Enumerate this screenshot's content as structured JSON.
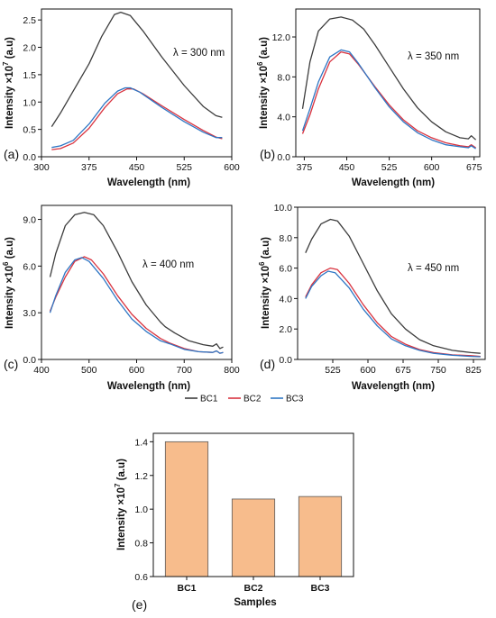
{
  "chart_data": [
    {
      "type": "line",
      "panel": "(a)",
      "annotation": "λ = 300 nm",
      "xlabel": "Wavelength (nm)",
      "ylabel": "Intensity ×10",
      "ylabel_exponent": "7",
      "ylabel_unit": " (a.u)",
      "xlim": [
        300,
        600
      ],
      "ylim": [
        0,
        2.7
      ],
      "xticks": [
        300,
        375,
        450,
        525,
        600
      ],
      "yticks": [
        0.0,
        0.5,
        1.0,
        1.5,
        2.0,
        2.5
      ],
      "ytick_decimals": 1,
      "series": [
        {
          "name": "BC1",
          "color": "#3c3c3c",
          "points": [
            [
              316,
              0.55
            ],
            [
              330,
              0.8
            ],
            [
              350,
              1.2
            ],
            [
              375,
              1.7
            ],
            [
              395,
              2.2
            ],
            [
              415,
              2.6
            ],
            [
              425,
              2.64
            ],
            [
              440,
              2.58
            ],
            [
              460,
              2.3
            ],
            [
              490,
              1.82
            ],
            [
              525,
              1.3
            ],
            [
              555,
              0.92
            ],
            [
              575,
              0.75
            ],
            [
              585,
              0.72
            ]
          ]
        },
        {
          "name": "BC2",
          "color": "#d9333f",
          "points": [
            [
              316,
              0.13
            ],
            [
              330,
              0.15
            ],
            [
              350,
              0.25
            ],
            [
              375,
              0.52
            ],
            [
              400,
              0.9
            ],
            [
              420,
              1.15
            ],
            [
              435,
              1.24
            ],
            [
              445,
              1.24
            ],
            [
              460,
              1.15
            ],
            [
              490,
              0.93
            ],
            [
              525,
              0.68
            ],
            [
              555,
              0.48
            ],
            [
              575,
              0.36
            ],
            [
              585,
              0.33
            ]
          ]
        },
        {
          "name": "BC3",
          "color": "#2e76c4",
          "points": [
            [
              316,
              0.17
            ],
            [
              330,
              0.2
            ],
            [
              350,
              0.3
            ],
            [
              375,
              0.6
            ],
            [
              400,
              0.98
            ],
            [
              420,
              1.2
            ],
            [
              432,
              1.26
            ],
            [
              440,
              1.26
            ],
            [
              455,
              1.18
            ],
            [
              490,
              0.9
            ],
            [
              525,
              0.64
            ],
            [
              555,
              0.45
            ],
            [
              575,
              0.35
            ],
            [
              585,
              0.35
            ]
          ]
        }
      ]
    },
    {
      "type": "line",
      "panel": "(b)",
      "annotation": "λ = 350 nm",
      "xlabel": "Wavelength (nm)",
      "ylabel": "Intensity ×10",
      "ylabel_exponent": "6",
      "ylabel_unit": " (a.u)",
      "xlim": [
        360,
        685
      ],
      "ylim": [
        0,
        14.8
      ],
      "xticks": [
        375,
        450,
        525,
        600,
        675
      ],
      "yticks": [
        0.0,
        4.0,
        8.0,
        12.0
      ],
      "ytick_decimals": 1,
      "series": [
        {
          "name": "BC1",
          "color": "#3c3c3c",
          "points": [
            [
              372,
              4.8
            ],
            [
              385,
              9.5
            ],
            [
              400,
              12.6
            ],
            [
              420,
              13.8
            ],
            [
              440,
              14.0
            ],
            [
              460,
              13.7
            ],
            [
              480,
              12.8
            ],
            [
              500,
              11.2
            ],
            [
              525,
              9.0
            ],
            [
              550,
              6.8
            ],
            [
              575,
              4.9
            ],
            [
              600,
              3.5
            ],
            [
              625,
              2.5
            ],
            [
              650,
              1.9
            ],
            [
              665,
              1.8
            ],
            [
              670,
              2.1
            ],
            [
              678,
              1.7
            ]
          ]
        },
        {
          "name": "BC2",
          "color": "#d9333f",
          "points": [
            [
              372,
              2.3
            ],
            [
              385,
              4.2
            ],
            [
              400,
              6.8
            ],
            [
              420,
              9.5
            ],
            [
              440,
              10.5
            ],
            [
              455,
              10.3
            ],
            [
              470,
              9.3
            ],
            [
              500,
              7.0
            ],
            [
              525,
              5.2
            ],
            [
              550,
              3.7
            ],
            [
              575,
              2.6
            ],
            [
              600,
              1.9
            ],
            [
              625,
              1.4
            ],
            [
              650,
              1.1
            ],
            [
              665,
              1.0
            ],
            [
              670,
              1.2
            ],
            [
              678,
              0.9
            ]
          ]
        },
        {
          "name": "BC3",
          "color": "#2e76c4",
          "points": [
            [
              372,
              2.6
            ],
            [
              385,
              4.8
            ],
            [
              400,
              7.5
            ],
            [
              420,
              10.0
            ],
            [
              440,
              10.7
            ],
            [
              455,
              10.5
            ],
            [
              470,
              9.4
            ],
            [
              500,
              6.9
            ],
            [
              525,
              5.0
            ],
            [
              550,
              3.5
            ],
            [
              575,
              2.4
            ],
            [
              600,
              1.7
            ],
            [
              625,
              1.2
            ],
            [
              650,
              1.0
            ],
            [
              665,
              0.9
            ],
            [
              670,
              1.1
            ],
            [
              678,
              0.8
            ]
          ]
        }
      ]
    },
    {
      "type": "line",
      "panel": "(c)",
      "annotation": "λ = 400 nm",
      "xlabel": "Wavelength (nm)",
      "ylabel": "Intensity ×10",
      "ylabel_exponent": "6",
      "ylabel_unit": " (a.u)",
      "xlim": [
        400,
        800
      ],
      "ylim": [
        0,
        9.9
      ],
      "xticks": [
        400,
        500,
        600,
        700,
        800
      ],
      "yticks": [
        0.0,
        3.0,
        6.0,
        9.0
      ],
      "ytick_decimals": 1,
      "series": [
        {
          "name": "BC1",
          "color": "#3c3c3c",
          "points": [
            [
              418,
              5.3
            ],
            [
              430,
              6.8
            ],
            [
              450,
              8.6
            ],
            [
              470,
              9.3
            ],
            [
              490,
              9.45
            ],
            [
              510,
              9.3
            ],
            [
              530,
              8.6
            ],
            [
              560,
              6.9
            ],
            [
              590,
              5.0
            ],
            [
              620,
              3.5
            ],
            [
              650,
              2.4
            ],
            [
              660,
              2.1
            ],
            [
              680,
              1.7
            ],
            [
              710,
              1.2
            ],
            [
              740,
              0.95
            ],
            [
              760,
              0.85
            ],
            [
              768,
              1.0
            ],
            [
              775,
              0.7
            ],
            [
              782,
              0.8
            ]
          ]
        },
        {
          "name": "BC2",
          "color": "#d9333f",
          "points": [
            [
              418,
              3.1
            ],
            [
              430,
              4.0
            ],
            [
              450,
              5.3
            ],
            [
              470,
              6.3
            ],
            [
              490,
              6.6
            ],
            [
              505,
              6.4
            ],
            [
              530,
              5.5
            ],
            [
              560,
              4.1
            ],
            [
              590,
              2.9
            ],
            [
              620,
              2.0
            ],
            [
              650,
              1.35
            ],
            [
              670,
              1.05
            ],
            [
              700,
              0.7
            ],
            [
              730,
              0.5
            ],
            [
              760,
              0.45
            ],
            [
              768,
              0.55
            ],
            [
              775,
              0.4
            ],
            [
              782,
              0.45
            ]
          ]
        },
        {
          "name": "BC3",
          "color": "#2e76c4",
          "points": [
            [
              418,
              3.0
            ],
            [
              430,
              4.1
            ],
            [
              450,
              5.6
            ],
            [
              470,
              6.4
            ],
            [
              485,
              6.55
            ],
            [
              500,
              6.3
            ],
            [
              530,
              5.2
            ],
            [
              560,
              3.8
            ],
            [
              590,
              2.6
            ],
            [
              620,
              1.8
            ],
            [
              650,
              1.2
            ],
            [
              670,
              1.0
            ],
            [
              700,
              0.65
            ],
            [
              730,
              0.5
            ],
            [
              760,
              0.45
            ],
            [
              768,
              0.55
            ],
            [
              775,
              0.4
            ],
            [
              782,
              0.45
            ]
          ]
        }
      ]
    },
    {
      "type": "line",
      "panel": "(d)",
      "annotation": "λ = 450 nm",
      "xlabel": "Wavelength (nm)",
      "ylabel": "Intensity ×10",
      "ylabel_exponent": "6",
      "ylabel_unit": " (a.u)",
      "xlim": [
        450,
        850
      ],
      "ylim": [
        0,
        10.0
      ],
      "xticks": [
        525,
        600,
        675,
        750,
        825
      ],
      "yticks": [
        0.0,
        2.0,
        4.0,
        6.0,
        8.0,
        10.0
      ],
      "ytick_decimals": 1,
      "series": [
        {
          "name": "BC1",
          "color": "#3c3c3c",
          "points": [
            [
              467,
              7.0
            ],
            [
              480,
              7.9
            ],
            [
              500,
              8.9
            ],
            [
              520,
              9.2
            ],
            [
              535,
              9.1
            ],
            [
              560,
              8.1
            ],
            [
              590,
              6.3
            ],
            [
              620,
              4.5
            ],
            [
              650,
              3.0
            ],
            [
              680,
              2.0
            ],
            [
              710,
              1.3
            ],
            [
              740,
              0.9
            ],
            [
              780,
              0.6
            ],
            [
              820,
              0.45
            ],
            [
              840,
              0.4
            ]
          ]
        },
        {
          "name": "BC2",
          "color": "#d9333f",
          "points": [
            [
              467,
              4.1
            ],
            [
              480,
              4.9
            ],
            [
              500,
              5.7
            ],
            [
              520,
              6.0
            ],
            [
              535,
              5.9
            ],
            [
              560,
              5.0
            ],
            [
              590,
              3.6
            ],
            [
              620,
              2.4
            ],
            [
              650,
              1.5
            ],
            [
              680,
              1.0
            ],
            [
              710,
              0.65
            ],
            [
              740,
              0.45
            ],
            [
              780,
              0.3
            ],
            [
              820,
              0.25
            ],
            [
              840,
              0.2
            ]
          ]
        },
        {
          "name": "BC3",
          "color": "#2e76c4",
          "points": [
            [
              467,
              4.0
            ],
            [
              480,
              4.8
            ],
            [
              500,
              5.5
            ],
            [
              515,
              5.8
            ],
            [
              530,
              5.7
            ],
            [
              560,
              4.7
            ],
            [
              590,
              3.3
            ],
            [
              620,
              2.2
            ],
            [
              650,
              1.35
            ],
            [
              680,
              0.9
            ],
            [
              710,
              0.6
            ],
            [
              740,
              0.4
            ],
            [
              780,
              0.28
            ],
            [
              820,
              0.2
            ],
            [
              840,
              0.18
            ]
          ]
        }
      ]
    },
    {
      "type": "bar",
      "panel": "(e)",
      "xlabel": "Samples",
      "ylabel": "Intensity ×10",
      "ylabel_exponent": "7",
      "ylabel_unit": " (a.u)",
      "categories": [
        "BC1",
        "BC2",
        "BC3"
      ],
      "values": [
        1.4,
        1.06,
        1.075
      ],
      "bar_color": "#f7bc8c",
      "bar_edge": "#5a5a5a",
      "ylim": [
        0.6,
        1.45
      ],
      "yticks": [
        0.6,
        0.8,
        1.0,
        1.2,
        1.4
      ],
      "ytick_decimals": 1
    }
  ],
  "legend": {
    "items": [
      {
        "label": "BC1",
        "color": "#3c3c3c"
      },
      {
        "label": "BC2",
        "color": "#d9333f"
      },
      {
        "label": "BC3",
        "color": "#2e76c4"
      }
    ]
  }
}
